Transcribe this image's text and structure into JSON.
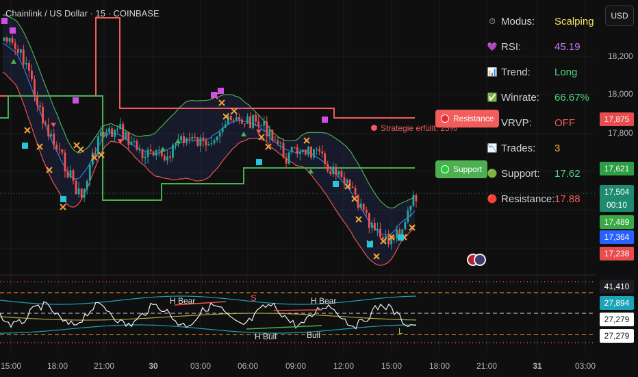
{
  "header": {
    "title": "Chainlink / US Dollar · 15 · COINBASE",
    "currency_button": "USD"
  },
  "info_panel": [
    {
      "icon": "timer-icon",
      "glyph": "⏱",
      "label": "Modus:",
      "value": "Scalping",
      "color": "#f5e56a"
    },
    {
      "icon": "heart-icon",
      "glyph": "💜",
      "label": "RSI:",
      "value": "45.19",
      "color": "#c77dff"
    },
    {
      "icon": "bar-chart-icon",
      "glyph": "📊",
      "label": "Trend:",
      "value": "Long",
      "color": "#4fd47a"
    },
    {
      "icon": "checkmark-icon",
      "glyph": "✅",
      "label": "Winrate:",
      "value": "66.67%",
      "color": "#4fd47a"
    },
    {
      "icon": "bar-chart-icon",
      "glyph": "📊",
      "label": "VRVP:",
      "value": "OFF",
      "color": "#f25c5c"
    },
    {
      "icon": "chart-down-icon",
      "glyph": "📉",
      "label": "Trades:",
      "value": "3",
      "color": "#f5a33b"
    },
    {
      "icon": "green-circle-icon",
      "glyph": "🟢",
      "label": "Support:",
      "value": "17.62",
      "color": "#4fd47a"
    },
    {
      "icon": "red-circle-icon",
      "glyph": "🔴",
      "label": "Resistance:",
      "value": "17.88",
      "color": "#f25c5c"
    }
  ],
  "price_axis": {
    "ticks": [
      "18,200",
      "18,000",
      "17,800"
    ],
    "badges": [
      {
        "text": "17,875",
        "bg": "#e84c4c"
      },
      {
        "text": "17,621",
        "bg": "#2e9e45"
      },
      {
        "text": "17,504",
        "bg": "#1f8a70"
      },
      {
        "text": "00:10",
        "bg": "#1f8a70"
      },
      {
        "text": "17,489",
        "bg": "#3aa845"
      },
      {
        "text": "17,364",
        "bg": "#2962ff"
      },
      {
        "text": "17,238",
        "bg": "#e84c4c"
      }
    ]
  },
  "osc_axis": {
    "badges": [
      {
        "text": "41,410",
        "bg": "#1e1e22"
      },
      {
        "text": "27,894",
        "bg": "#1ba3b8"
      },
      {
        "text": "27,279",
        "bg": "#ffffff"
      },
      {
        "text": "27,279",
        "bg": "#ffffff"
      }
    ]
  },
  "time_axis": [
    "15:00",
    "18:00",
    "21:00",
    "30",
    "03:00",
    "06:00",
    "09:00",
    "12:00",
    "15:00",
    "18:00",
    "21:00",
    "31",
    "03:00"
  ],
  "labels": {
    "resistance_flag": "Resistance",
    "support_flag": "Support",
    "strategy_note": "Strategie erfüllt: 25%",
    "h_bear_1": "H Bear",
    "h_bear_2": "H Bear",
    "h_bull": "H Bull",
    "bull": "Bull",
    "s_marker": "S",
    "l_marker": "L"
  },
  "colors": {
    "bull": "#26a69a",
    "bear": "#ef5350",
    "resistance": "#f25c5c",
    "support": "#4caf50",
    "basis": "#2f7de1",
    "cross": "#f5a33b"
  }
}
